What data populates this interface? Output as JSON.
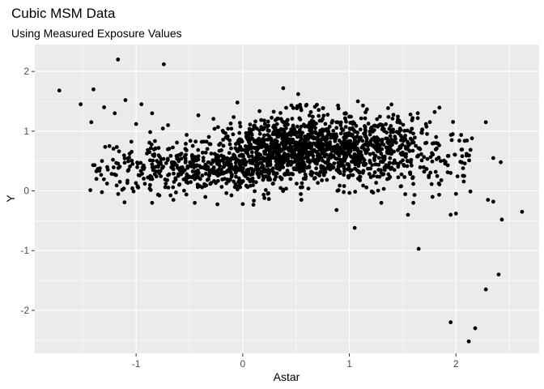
{
  "chart_data": {
    "type": "scatter",
    "title": "Cubic MSM Data",
    "subtitle": "Using Measured Exposure Values",
    "xlabel": "Astar",
    "ylabel": "Y",
    "xlim": [
      -1.95,
      2.78
    ],
    "ylim": [
      -2.72,
      2.45
    ],
    "x_ticks": [
      -1,
      0,
      1,
      2
    ],
    "x_tick_labels": [
      "-1",
      "0",
      "1",
      "2"
    ],
    "y_ticks": [
      -2,
      -1,
      0,
      1,
      2
    ],
    "y_tick_labels": [
      "-2",
      "-1",
      "0",
      "1",
      "2"
    ],
    "grid": true,
    "legend": "none",
    "colors": {
      "panel": "#ebebeb",
      "grid_major": "#ffffff",
      "point": "#000000",
      "tick_label": "#4d4d4d",
      "tick_mark": "#333333"
    },
    "points": [
      {
        "x": -1.72,
        "y": 1.68
      },
      {
        "x": -1.52,
        "y": 1.45
      },
      {
        "x": -1.4,
        "y": 1.7
      },
      {
        "x": -1.17,
        "y": 2.2
      },
      {
        "x": -0.74,
        "y": 2.12
      },
      {
        "x": -1.42,
        "y": 1.15
      },
      {
        "x": -1.3,
        "y": 1.4
      },
      {
        "x": -1.2,
        "y": 1.3
      },
      {
        "x": -1.1,
        "y": 1.52
      },
      {
        "x": -1.0,
        "y": 1.12
      },
      {
        "x": -0.95,
        "y": 1.45
      },
      {
        "x": -0.85,
        "y": 1.3
      },
      {
        "x": -0.7,
        "y": 1.1
      },
      {
        "x": 0.38,
        "y": 1.72
      },
      {
        "x": 0.52,
        "y": 1.62
      },
      {
        "x": 1.08,
        "y": 1.5
      },
      {
        "x": 1.8,
        "y": 1.32
      },
      {
        "x": 2.28,
        "y": 1.15
      },
      {
        "x": -1.25,
        "y": 0.75
      },
      {
        "x": -1.32,
        "y": 0.5
      },
      {
        "x": -0.05,
        "y": 1.48
      },
      {
        "x": 2.15,
        "y": 0.88
      },
      {
        "x": 2.35,
        "y": 0.55
      },
      {
        "x": 2.1,
        "y": 0.62
      },
      {
        "x": 1.95,
        "y": 0.3
      },
      {
        "x": 2.0,
        "y": -0.05
      },
      {
        "x": 2.3,
        "y": -0.15
      },
      {
        "x": 2.35,
        "y": -0.18
      },
      {
        "x": 2.42,
        "y": 0.48
      },
      {
        "x": 2.62,
        "y": -0.35
      },
      {
        "x": 2.43,
        "y": -0.48
      },
      {
        "x": 1.95,
        "y": -0.4
      },
      {
        "x": 2.0,
        "y": -0.38
      },
      {
        "x": 1.55,
        "y": -0.4
      },
      {
        "x": 1.05,
        "y": -0.62
      },
      {
        "x": 0.88,
        "y": -0.32
      },
      {
        "x": 1.65,
        "y": -0.97
      },
      {
        "x": 2.4,
        "y": -1.4
      },
      {
        "x": 2.28,
        "y": -1.65
      },
      {
        "x": 1.95,
        "y": -2.2
      },
      {
        "x": 2.18,
        "y": -2.3
      },
      {
        "x": 2.12,
        "y": -2.52
      },
      {
        "x": 1.3,
        "y": -0.2
      },
      {
        "x": 0.0,
        "y": -0.22
      },
      {
        "x": -0.45,
        "y": -0.2
      },
      {
        "x": -0.85,
        "y": -0.2
      },
      {
        "x": -0.65,
        "y": -0.15
      },
      {
        "x": 0.55,
        "y": -0.15
      },
      {
        "x": 1.78,
        "y": -0.1
      },
      {
        "x": 1.6,
        "y": -0.2
      }
    ],
    "cloud": [
      {
        "center": [
          0.6,
          0.72
        ],
        "spread": [
          0.42,
          0.28
        ],
        "count": 1050
      },
      {
        "center": [
          -0.08,
          0.38
        ],
        "spread": [
          0.32,
          0.2
        ],
        "count": 330
      },
      {
        "center": [
          1.3,
          0.72
        ],
        "spread": [
          0.28,
          0.3
        ],
        "count": 280
      },
      {
        "center": [
          -0.7,
          0.42
        ],
        "spread": [
          0.28,
          0.22
        ],
        "count": 150
      },
      {
        "center": [
          -1.15,
          0.3
        ],
        "spread": [
          0.18,
          0.2
        ],
        "count": 45
      },
      {
        "center": [
          1.85,
          0.55
        ],
        "spread": [
          0.2,
          0.3
        ],
        "count": 60
      }
    ]
  }
}
